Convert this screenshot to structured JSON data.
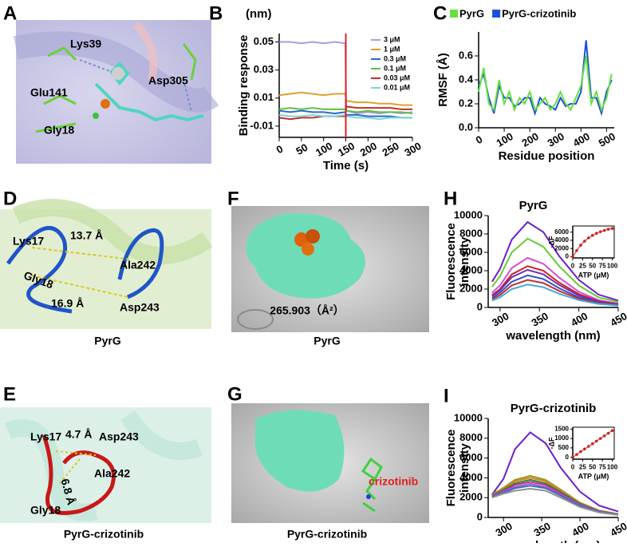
{
  "panel_labels": [
    "A",
    "B",
    "C",
    "D",
    "E",
    "F",
    "G",
    "H",
    "I"
  ],
  "panels": {
    "A": {
      "annotations": [
        "Lys39",
        "Glu141",
        "Asp305",
        "Gly18"
      ]
    },
    "D": {
      "annotations": [
        "Lys17",
        "13.7 Å",
        "Gly18",
        "Ala242",
        "16.9 Å",
        "Asp243"
      ],
      "caption": "PyrG"
    },
    "E": {
      "annotations": [
        "Lys17",
        "4.7 Å",
        "Asp243",
        "Ala242",
        "6.8 Å",
        "Gly18"
      ],
      "caption": "PyrG-crizotinib"
    },
    "F": {
      "annotations": [
        "265.903（Å²）"
      ],
      "caption": "PyrG"
    },
    "G": {
      "annotations": [
        "crizotinib"
      ],
      "caption": "PyrG-crizotinib"
    }
  },
  "chart_data": [
    {
      "type": "line",
      "unit_label": "(nm)",
      "xlabel": "Time (s)",
      "ylabel": [
        "Binding response"
      ],
      "legend": "upper right",
      "x": [
        0,
        25,
        50,
        75,
        100,
        125,
        149,
        151,
        175,
        200,
        225,
        250,
        275,
        300
      ],
      "xlim": [
        0,
        300
      ],
      "xticks": [
        0,
        50,
        100,
        150,
        200,
        250,
        300
      ],
      "ylim": [
        -0.018,
        0.056
      ],
      "yticks": [
        -0.01,
        0.01,
        0.03,
        0.05
      ],
      "vline": 150,
      "vline_color": "#e0202a",
      "series": [
        {
          "name": "3 μM",
          "color": "#a99ee0",
          "values": [
            0.05,
            0.05,
            0.049,
            0.05,
            0.049,
            0.05,
            0.049,
            0.001,
            -0.001,
            0.0,
            -0.001,
            0.0,
            -0.001,
            0.0
          ]
        },
        {
          "name": "1 μM",
          "color": "#e0a030",
          "values": [
            0.012,
            0.013,
            0.014,
            0.013,
            0.012,
            0.013,
            0.013,
            0.008,
            0.007,
            0.007,
            0.006,
            0.006,
            0.005,
            0.005
          ]
        },
        {
          "name": "0.3 μM",
          "color": "#2a6ac8",
          "values": [
            0.001,
            0.0,
            0.001,
            0.0,
            0.0,
            -0.001,
            0.0,
            -0.002,
            -0.002,
            -0.003,
            -0.003,
            -0.003,
            -0.004,
            -0.004
          ]
        },
        {
          "name": "0.1 μM",
          "color": "#60c040",
          "values": [
            0.002,
            0.003,
            0.002,
            0.003,
            0.002,
            0.002,
            0.002,
            0.001,
            0.0,
            0.001,
            0.0,
            0.0,
            0.0,
            -0.001
          ]
        },
        {
          "name": "0.03 μM",
          "color": "#c0302a",
          "values": [
            -0.004,
            -0.005,
            -0.004,
            -0.004,
            -0.003,
            -0.003,
            -0.003,
            0.004,
            0.003,
            0.003,
            0.003,
            0.003,
            0.002,
            0.002
          ]
        },
        {
          "name": "0.01 μM",
          "color": "#7fd3e0",
          "values": [
            -0.002,
            -0.003,
            -0.003,
            -0.002,
            -0.003,
            -0.003,
            -0.002,
            -0.003,
            -0.004,
            -0.004,
            -0.005,
            -0.004,
            -0.004,
            -0.004
          ]
        }
      ]
    },
    {
      "type": "line",
      "xlabel": "Residue position",
      "ylabel": [
        "RMSF (Å)"
      ],
      "legend": "top",
      "x": [
        0,
        20,
        40,
        60,
        80,
        100,
        120,
        140,
        160,
        180,
        200,
        220,
        240,
        260,
        280,
        300,
        320,
        340,
        360,
        380,
        400,
        420,
        440,
        460,
        480,
        500,
        520
      ],
      "xlim": [
        0,
        530
      ],
      "xticks": [
        0,
        100,
        200,
        300,
        400,
        500
      ],
      "ylim": [
        0,
        0.8
      ],
      "yticks": [
        {
          "value": 0,
          "label": "0.0"
        },
        0.2,
        0.4,
        0.6
      ],
      "series": [
        {
          "name": "PyrG",
          "color": "#66e040",
          "values": [
            0.3,
            0.5,
            0.2,
            0.15,
            0.4,
            0.2,
            0.3,
            0.15,
            0.25,
            0.2,
            0.3,
            0.15,
            0.2,
            0.25,
            0.15,
            0.2,
            0.3,
            0.2,
            0.15,
            0.25,
            0.35,
            0.6,
            0.2,
            0.3,
            0.15,
            0.25,
            0.45
          ]
        },
        {
          "name": "PyrG-crizotinib",
          "color": "#1f4fd8",
          "values": [
            0.35,
            0.45,
            0.25,
            0.12,
            0.35,
            0.25,
            0.25,
            0.18,
            0.2,
            0.25,
            0.25,
            0.12,
            0.25,
            0.2,
            0.18,
            0.15,
            0.25,
            0.18,
            0.2,
            0.2,
            0.3,
            0.73,
            0.25,
            0.25,
            0.12,
            0.3,
            0.4
          ]
        }
      ]
    },
    {
      "type": "line",
      "title": "PyrG",
      "xlabel": "wavelength  (nm)",
      "ylabel": [
        "Fluorescence",
        "intensity"
      ],
      "x": [
        290,
        300,
        315,
        335,
        355,
        375,
        400,
        425,
        450
      ],
      "xlim": [
        285,
        450
      ],
      "xticks": [
        300,
        350,
        400,
        450
      ],
      "ylim": [
        0,
        10000
      ],
      "yticks": [
        0,
        2000,
        4000,
        6000,
        8000,
        10000
      ],
      "series": [
        {
          "color": "#6a1fd0",
          "values": [
            2800,
            4200,
            7400,
            9300,
            8200,
            5600,
            3000,
            1400,
            750
          ]
        },
        {
          "color": "#66cc33",
          "values": [
            2250,
            3400,
            6000,
            7500,
            6600,
            4500,
            2400,
            1100,
            600
          ]
        },
        {
          "color": "#d050d0",
          "values": [
            1600,
            2400,
            4300,
            5400,
            4750,
            3250,
            1700,
            800,
            430
          ]
        },
        {
          "color": "#d02020",
          "values": [
            1350,
            2000,
            3600,
            4500,
            4000,
            2700,
            1450,
            680,
            360
          ]
        },
        {
          "color": "#7a2ab0",
          "values": [
            1250,
            1850,
            3300,
            4100,
            3600,
            2450,
            1300,
            620,
            330
          ]
        },
        {
          "color": "#3050c8",
          "values": [
            1050,
            1600,
            2800,
            3500,
            3100,
            2100,
            1100,
            530,
            280
          ]
        },
        {
          "color": "#c03030",
          "values": [
            900,
            1350,
            2400,
            3000,
            2650,
            1800,
            950,
            450,
            240
          ]
        },
        {
          "color": "#40a8d8",
          "values": [
            750,
            1100,
            2000,
            2500,
            2200,
            1500,
            800,
            380,
            200
          ]
        }
      ]
    },
    {
      "type": "scatter",
      "xlabel": "ATP (μM)",
      "ylabel": [
        "-ΔF"
      ],
      "color": "#d02020",
      "x": [
        0,
        10,
        20,
        30,
        40,
        50,
        60,
        70,
        80,
        90,
        100
      ],
      "values": [
        0,
        1500,
        2800,
        3800,
        4600,
        5200,
        5700,
        6100,
        6400,
        6700,
        6900
      ],
      "xlim": [
        0,
        105
      ],
      "xticks": [
        0,
        25,
        50,
        75,
        100
      ],
      "ylim": [
        -300,
        7500
      ],
      "yticks": [
        0,
        2000,
        4000,
        6000
      ]
    },
    {
      "type": "line",
      "title": "PyrG-crizotinib",
      "xlabel": "wavelength  (nm)",
      "ylabel": [
        "Fluorescence",
        "intensity"
      ],
      "x": [
        285,
        300,
        315,
        335,
        355,
        375,
        400,
        425,
        450
      ],
      "xlim": [
        280,
        450
      ],
      "xticks": [
        300,
        350,
        400,
        450
      ],
      "ylim": [
        0,
        10000
      ],
      "yticks": [
        0,
        2000,
        4000,
        6000,
        8000,
        10000
      ],
      "series": [
        {
          "color": "#6a1fd0",
          "values": [
            2300,
            3900,
            6900,
            8600,
            7500,
            5000,
            2600,
            1200,
            600
          ]
        },
        {
          "color": "#8a9a20",
          "values": [
            2300,
            3000,
            3800,
            4200,
            3800,
            2800,
            1500,
            700,
            350
          ]
        },
        {
          "color": "#e08020",
          "values": [
            2250,
            2900,
            3650,
            4000,
            3650,
            2700,
            1450,
            680,
            340
          ]
        },
        {
          "color": "#2a8a2a",
          "values": [
            2200,
            2800,
            3450,
            3800,
            3450,
            2550,
            1380,
            650,
            320
          ]
        },
        {
          "color": "#c03090",
          "values": [
            2150,
            2700,
            3300,
            3600,
            3300,
            2450,
            1300,
            620,
            300
          ]
        },
        {
          "color": "#a060d0",
          "values": [
            2100,
            2600,
            3100,
            3400,
            3100,
            2300,
            1230,
            580,
            290
          ]
        },
        {
          "color": "#3a6ac0",
          "values": [
            2050,
            2500,
            2950,
            3200,
            2950,
            2200,
            1160,
            550,
            270
          ]
        },
        {
          "color": "#909090",
          "values": [
            2000,
            2400,
            2700,
            2900,
            2700,
            2000,
            1050,
            500,
            250
          ]
        }
      ]
    },
    {
      "type": "scatter",
      "xlabel": "ATP (μM)",
      "ylabel": [
        "-ΔF"
      ],
      "color": "#d02020",
      "x": [
        0,
        10,
        20,
        30,
        40,
        50,
        60,
        70,
        80,
        90,
        100
      ],
      "values": [
        0,
        150,
        300,
        440,
        580,
        720,
        860,
        1000,
        1140,
        1280,
        1420
      ],
      "xlim": [
        0,
        105
      ],
      "xticks": [
        0,
        25,
        50,
        75,
        100
      ],
      "ylim": [
        -100,
        1600
      ],
      "yticks": [
        0,
        500,
        1000,
        1500
      ]
    }
  ]
}
